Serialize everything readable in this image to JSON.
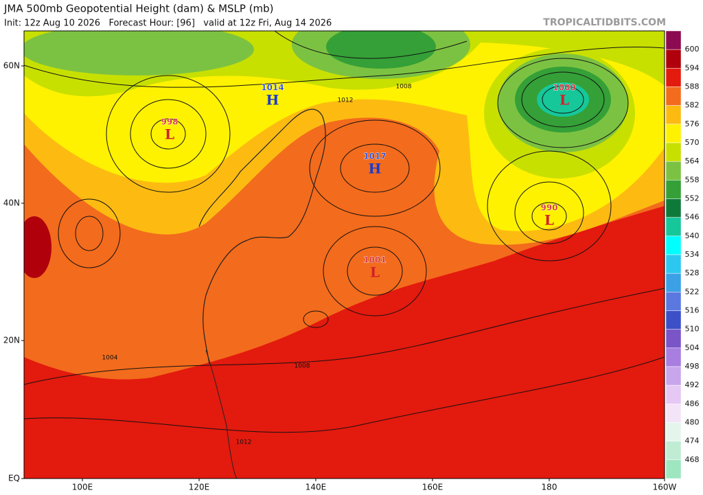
{
  "header": {
    "title": "JMA 500mb Geopotential Height (dam) & MSLP (mb)",
    "subtitle": "Init: 12z Aug 10 2026   Forecast Hour: [96]   valid at 12z Fri, Aug 14 2026",
    "brand": "TROPICALTIDBITS.COM"
  },
  "axes": {
    "lat_labels": [
      "60N",
      "40N",
      "20N",
      "EQ"
    ],
    "lon_labels": [
      "100E",
      "120E",
      "140E",
      "160E",
      "180",
      "160W"
    ]
  },
  "colorbar": {
    "labels": [
      "600",
      "594",
      "588",
      "582",
      "576",
      "570",
      "564",
      "558",
      "552",
      "546",
      "540",
      "534",
      "528",
      "522",
      "516",
      "510",
      "504",
      "498",
      "492",
      "486",
      "480",
      "474",
      "468"
    ],
    "colors": [
      "#8c0a50",
      "#b0000c",
      "#e31a0e",
      "#f36b1c",
      "#fdbb12",
      "#fff200",
      "#c8e000",
      "#7cc242",
      "#34a037",
      "#0e7a3a",
      "#16c79a",
      "#00ffff",
      "#2cc8f0",
      "#3ba0e6",
      "#5b78e0",
      "#3c50c8",
      "#7a55c8",
      "#a87ee0",
      "#c8a6ec",
      "#e6c8f4",
      "#f4e4f8",
      "#e4f6ec",
      "#c0ecd4",
      "#9ee6c0"
    ]
  },
  "centers": [
    {
      "value": "1014",
      "letter": "H"
    },
    {
      "value": "998",
      "letter": "L"
    },
    {
      "value": "1017",
      "letter": "H"
    },
    {
      "value": "1001",
      "letter": "L"
    },
    {
      "value": "990",
      "letter": "L"
    },
    {
      "value": "1000",
      "letter": "L"
    }
  ],
  "isobar_labels": [
    "1008",
    "1012",
    "1004",
    "1008",
    "1012"
  ]
}
